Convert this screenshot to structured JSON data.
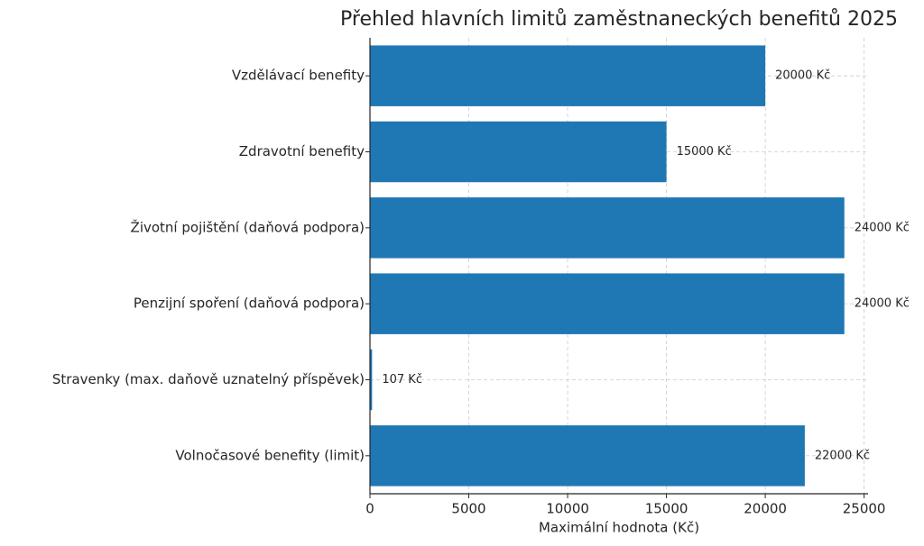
{
  "chart_data": {
    "type": "barh",
    "title": "Přehled hlavních limitů zaměstnaneckých benefitů 2025",
    "xlabel": "Maximální hodnota (Kč)",
    "categories": [
      "Vzdělávací benefity",
      "Zdravotní benefity",
      "Životní pojištění (daňová podpora)",
      "Penzijní spoření (daňová podpora)",
      "Stravenky (max. daňově uznatelný příspěvek)",
      "Volnočasové benefity (limit)"
    ],
    "values": [
      20000,
      15000,
      24000,
      24000,
      107,
      22000
    ],
    "value_labels": [
      "20000 Kč",
      "15000 Kč",
      "24000 Kč",
      "24000 Kč",
      "107 Kč",
      "22000 Kč"
    ],
    "color": "#1f77b4",
    "xlim": [
      0,
      25200
    ],
    "xticks": [
      0,
      5000,
      10000,
      15000,
      20000,
      25000
    ],
    "grid": true
  }
}
